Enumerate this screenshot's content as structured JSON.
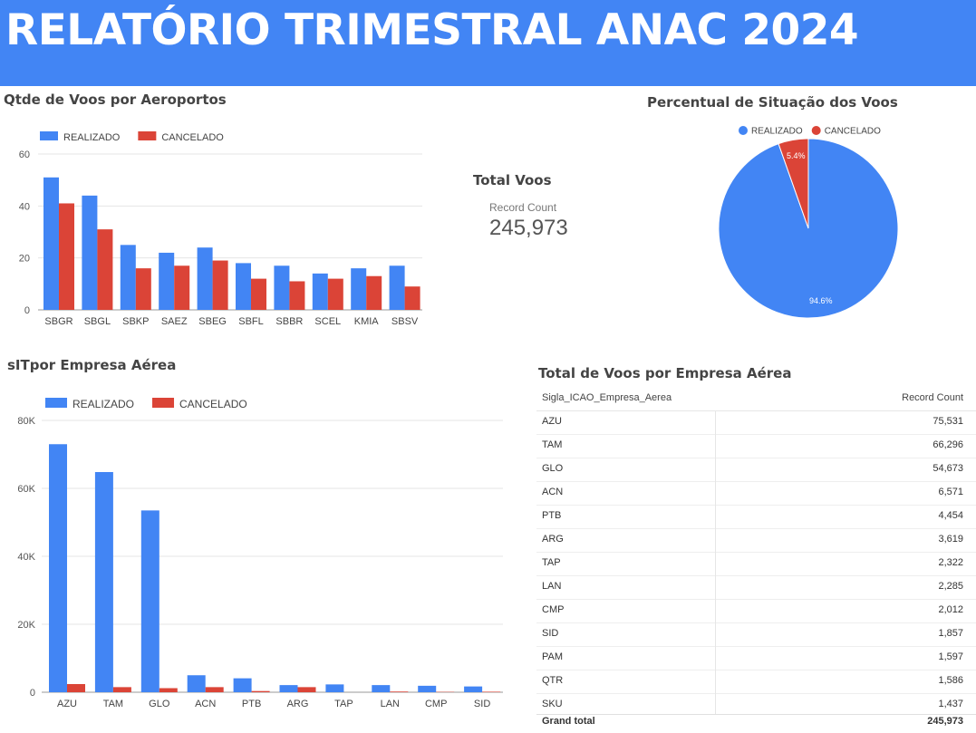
{
  "header": {
    "title": "RELATÓRIO TRIMESTRAL ANAC 2024"
  },
  "colors": {
    "realizado": "#4285f4",
    "cancelado": "#db4437",
    "header_bg": "#4285f4"
  },
  "scorecard": {
    "title": "Total Voos",
    "label": "Record Count",
    "value": "245,973"
  },
  "chart_data": [
    {
      "id": "aeroportos",
      "type": "bar",
      "title": "Qtde de Voos por Aeroportos",
      "categories": [
        "SBGR",
        "SBGL",
        "SBKP",
        "SAEZ",
        "SBEG",
        "SBFL",
        "SBBR",
        "SCEL",
        "KMIA",
        "SBSV"
      ],
      "series": [
        {
          "name": "REALIZADO",
          "color": "#4285f4",
          "values": [
            51,
            44,
            25,
            22,
            24,
            18,
            17,
            14,
            16,
            17
          ]
        },
        {
          "name": "CANCELADO",
          "color": "#db4437",
          "values": [
            41,
            31,
            16,
            17,
            19,
            12,
            11,
            12,
            13,
            9
          ]
        }
      ],
      "yticks": [
        "0",
        "20",
        "40",
        "60"
      ],
      "ylim": [
        0,
        60
      ],
      "grid": true,
      "legend": "top-left"
    },
    {
      "id": "situacao",
      "type": "pie",
      "title": "Percentual de Situação dos Voos",
      "slices": [
        {
          "name": "REALIZADO",
          "value": 94.6,
          "label": "94.6%",
          "color": "#4285f4"
        },
        {
          "name": "CANCELADO",
          "value": 5.4,
          "label": "5.4%",
          "color": "#db4437"
        }
      ],
      "legend": "top"
    },
    {
      "id": "empresas",
      "type": "bar",
      "title": "sITpor Empresa Aérea",
      "categories": [
        "AZU",
        "TAM",
        "GLO",
        "ACN",
        "PTB",
        "ARG",
        "TAP",
        "LAN",
        "CMP",
        "SID"
      ],
      "series": [
        {
          "name": "REALIZADO",
          "color": "#4285f4",
          "values": [
            73000,
            64800,
            53500,
            5000,
            4100,
            2100,
            2300,
            2100,
            1900,
            1700
          ]
        },
        {
          "name": "CANCELADO",
          "color": "#db4437",
          "values": [
            2400,
            1500,
            1200,
            1500,
            350,
            1500,
            0,
            200,
            100,
            150
          ]
        }
      ],
      "yticks": [
        "0",
        "20K",
        "40K",
        "60K",
        "80K"
      ],
      "ylim": [
        0,
        80000
      ],
      "grid": true,
      "legend": "top-left"
    },
    {
      "id": "tabela",
      "type": "table",
      "title": "Total de Voos por Empresa Aérea",
      "columns": [
        "Sigla_ICAO_Empresa_Aerea",
        "Record Count"
      ],
      "rows": [
        [
          "AZU",
          "75,531"
        ],
        [
          "TAM",
          "66,296"
        ],
        [
          "GLO",
          "54,673"
        ],
        [
          "ACN",
          "6,571"
        ],
        [
          "PTB",
          "4,454"
        ],
        [
          "ARG",
          "3,619"
        ],
        [
          "TAP",
          "2,322"
        ],
        [
          "LAN",
          "2,285"
        ],
        [
          "CMP",
          "2,012"
        ],
        [
          "SID",
          "1,857"
        ],
        [
          "PAM",
          "1,597"
        ],
        [
          "QTR",
          "1,586"
        ],
        [
          "SKU",
          "1,437"
        ]
      ],
      "total": [
        "Grand total",
        "245,973"
      ]
    }
  ]
}
